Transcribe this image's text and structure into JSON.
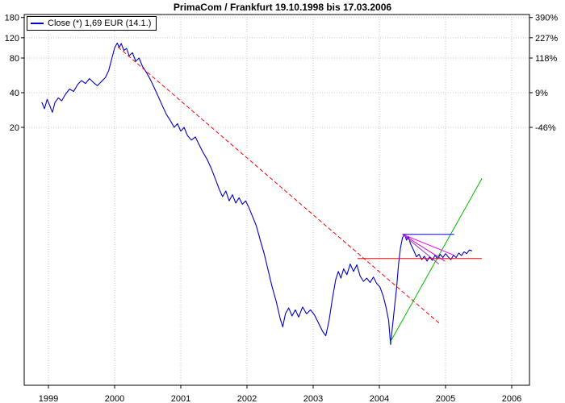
{
  "title": "PrimaCom / Frankfurt 19.10.1998 bis 17.03.2006",
  "legend": {
    "label": "Close (*) 1,69 EUR (14.1.)",
    "line_color": "#0000cc"
  },
  "colors": {
    "price_line": "#0000cc",
    "downtrend_line": "#ff0000",
    "support_line": "#00bb00",
    "horizontal_level": "#ff0000",
    "consolidation_top": "#0000ff",
    "fan_lines": "#cc00cc",
    "grid": "#c8c8c8",
    "frame": "#000000"
  },
  "chart_data": {
    "type": "line",
    "title": "PrimaCom / Frankfurt 19.10.1998 bis 17.03.2006",
    "x_axis": {
      "label": "",
      "ticks": [
        1999,
        2000,
        2001,
        2002,
        2003,
        2004,
        2005,
        2006
      ]
    },
    "y_axis": {
      "scale": "log",
      "left_unit": "EUR",
      "right_unit": "percent",
      "ticks": [
        {
          "price": 180,
          "pct": "390%"
        },
        {
          "price": 120,
          "pct": "227%"
        },
        {
          "price": 80,
          "pct": "118%"
        },
        {
          "price": 40,
          "pct": "9%"
        },
        {
          "price": 20,
          "pct": "-46%"
        }
      ]
    },
    "series": [
      {
        "name": "Close",
        "color": "#0000cc",
        "points": [
          [
            1998.9,
            33
          ],
          [
            1998.94,
            29
          ],
          [
            1998.98,
            35
          ],
          [
            1999.02,
            31
          ],
          [
            1999.06,
            27
          ],
          [
            1999.1,
            33
          ],
          [
            1999.15,
            36
          ],
          [
            1999.2,
            34
          ],
          [
            1999.26,
            39
          ],
          [
            1999.32,
            43
          ],
          [
            1999.38,
            41
          ],
          [
            1999.44,
            47
          ],
          [
            1999.5,
            51
          ],
          [
            1999.56,
            48
          ],
          [
            1999.62,
            53
          ],
          [
            1999.68,
            49
          ],
          [
            1999.74,
            46
          ],
          [
            1999.8,
            50
          ],
          [
            1999.86,
            54
          ],
          [
            1999.91,
            62
          ],
          [
            1999.96,
            80
          ],
          [
            2000.0,
            98
          ],
          [
            2000.04,
            108
          ],
          [
            2000.07,
            99
          ],
          [
            2000.1,
            107
          ],
          [
            2000.14,
            93
          ],
          [
            2000.18,
            97
          ],
          [
            2000.22,
            84
          ],
          [
            2000.27,
            89
          ],
          [
            2000.32,
            75
          ],
          [
            2000.37,
            80
          ],
          [
            2000.42,
            68
          ],
          [
            2000.48,
            60
          ],
          [
            2000.54,
            52
          ],
          [
            2000.6,
            44
          ],
          [
            2000.66,
            37
          ],
          [
            2000.72,
            31
          ],
          [
            2000.78,
            26
          ],
          [
            2000.84,
            23
          ],
          [
            2000.9,
            20
          ],
          [
            2000.95,
            21.5
          ],
          [
            2001.0,
            18.5
          ],
          [
            2001.05,
            20
          ],
          [
            2001.1,
            17
          ],
          [
            2001.16,
            15.5
          ],
          [
            2001.22,
            16.5
          ],
          [
            2001.28,
            14
          ],
          [
            2001.34,
            12
          ],
          [
            2001.4,
            10.5
          ],
          [
            2001.46,
            8.8
          ],
          [
            2001.52,
            7.2
          ],
          [
            2001.58,
            5.8
          ],
          [
            2001.63,
            5.0
          ],
          [
            2001.68,
            5.6
          ],
          [
            2001.73,
            4.6
          ],
          [
            2001.78,
            5.2
          ],
          [
            2001.83,
            4.4
          ],
          [
            2001.88,
            4.9
          ],
          [
            2001.93,
            4.3
          ],
          [
            2001.98,
            4.6
          ],
          [
            2002.03,
            4.0
          ],
          [
            2002.08,
            3.4
          ],
          [
            2002.14,
            2.8
          ],
          [
            2002.2,
            2.1
          ],
          [
            2002.26,
            1.6
          ],
          [
            2002.32,
            1.15
          ],
          [
            2002.38,
            0.82
          ],
          [
            2002.44,
            0.62
          ],
          [
            2002.5,
            0.44
          ],
          [
            2002.54,
            0.37
          ],
          [
            2002.58,
            0.48
          ],
          [
            2002.63,
            0.54
          ],
          [
            2002.68,
            0.46
          ],
          [
            2002.73,
            0.52
          ],
          [
            2002.78,
            0.45
          ],
          [
            2002.84,
            0.55
          ],
          [
            2002.9,
            0.48
          ],
          [
            2002.96,
            0.52
          ],
          [
            2003.02,
            0.47
          ],
          [
            2003.08,
            0.4
          ],
          [
            2003.14,
            0.34
          ],
          [
            2003.19,
            0.31
          ],
          [
            2003.24,
            0.42
          ],
          [
            2003.29,
            0.65
          ],
          [
            2003.34,
            0.95
          ],
          [
            2003.38,
            1.12
          ],
          [
            2003.42,
            0.98
          ],
          [
            2003.46,
            1.18
          ],
          [
            2003.51,
            1.05
          ],
          [
            2003.56,
            1.3
          ],
          [
            2003.61,
            1.12
          ],
          [
            2003.66,
            1.28
          ],
          [
            2003.71,
            1.02
          ],
          [
            2003.76,
            0.92
          ],
          [
            2003.81,
            0.98
          ],
          [
            2003.86,
            0.9
          ],
          [
            2003.91,
            1.0
          ],
          [
            2003.96,
            0.88
          ],
          [
            2004.01,
            0.82
          ],
          [
            2004.06,
            0.68
          ],
          [
            2004.1,
            0.55
          ],
          [
            2004.14,
            0.42
          ],
          [
            2004.17,
            0.26
          ],
          [
            2004.2,
            0.38
          ],
          [
            2004.23,
            0.56
          ],
          [
            2004.26,
            0.8
          ],
          [
            2004.29,
            1.3
          ],
          [
            2004.32,
            1.8
          ],
          [
            2004.35,
            2.2
          ],
          [
            2004.38,
            2.35
          ],
          [
            2004.41,
            2.1
          ],
          [
            2004.44,
            2.25
          ],
          [
            2004.47,
            1.95
          ],
          [
            2004.5,
            1.8
          ],
          [
            2004.53,
            1.65
          ],
          [
            2004.56,
            1.5
          ],
          [
            2004.6,
            1.58
          ],
          [
            2004.64,
            1.42
          ],
          [
            2004.68,
            1.52
          ],
          [
            2004.72,
            1.38
          ],
          [
            2004.76,
            1.5
          ],
          [
            2004.8,
            1.4
          ],
          [
            2004.84,
            1.55
          ],
          [
            2004.88,
            1.44
          ],
          [
            2004.92,
            1.58
          ],
          [
            2004.96,
            1.48
          ],
          [
            2005.0,
            1.6
          ],
          [
            2005.04,
            1.5
          ],
          [
            2005.08,
            1.42
          ],
          [
            2005.12,
            1.55
          ],
          [
            2005.16,
            1.48
          ],
          [
            2005.2,
            1.62
          ],
          [
            2005.24,
            1.54
          ],
          [
            2005.28,
            1.66
          ],
          [
            2005.32,
            1.6
          ],
          [
            2005.36,
            1.72
          ],
          [
            2005.4,
            1.69
          ]
        ]
      }
    ],
    "overlays": [
      {
        "name": "downtrend-line",
        "color": "#ff0000",
        "dash": "5 3",
        "from": [
          2000.05,
          100.0
        ],
        "to": [
          2004.9,
          0.4
        ]
      },
      {
        "name": "support-line",
        "color": "#00bb00",
        "dash": "",
        "from": [
          2004.16,
          0.27
        ],
        "to": [
          2005.55,
          7.2
        ]
      },
      {
        "name": "horizontal-level",
        "color": "#ff0000",
        "dash": "",
        "from": [
          2003.67,
          1.45
        ],
        "to": [
          2005.55,
          1.45
        ]
      },
      {
        "name": "consolidation-top",
        "color": "#0000ff",
        "dash": "",
        "from": [
          2004.35,
          2.35
        ],
        "to": [
          2005.13,
          2.35
        ]
      },
      {
        "name": "fan-line-1",
        "color": "#ff00ff",
        "dash": "",
        "from": [
          2004.35,
          2.35
        ],
        "to": [
          2005.13,
          1.55
        ]
      },
      {
        "name": "fan-line-2",
        "color": "#cc00cc",
        "dash": "",
        "from": [
          2004.35,
          2.35
        ],
        "to": [
          2004.99,
          1.38
        ]
      },
      {
        "name": "fan-line-3",
        "color": "#8833cc",
        "dash": "",
        "from": [
          2004.35,
          2.35
        ],
        "to": [
          2004.9,
          1.3
        ]
      }
    ]
  }
}
